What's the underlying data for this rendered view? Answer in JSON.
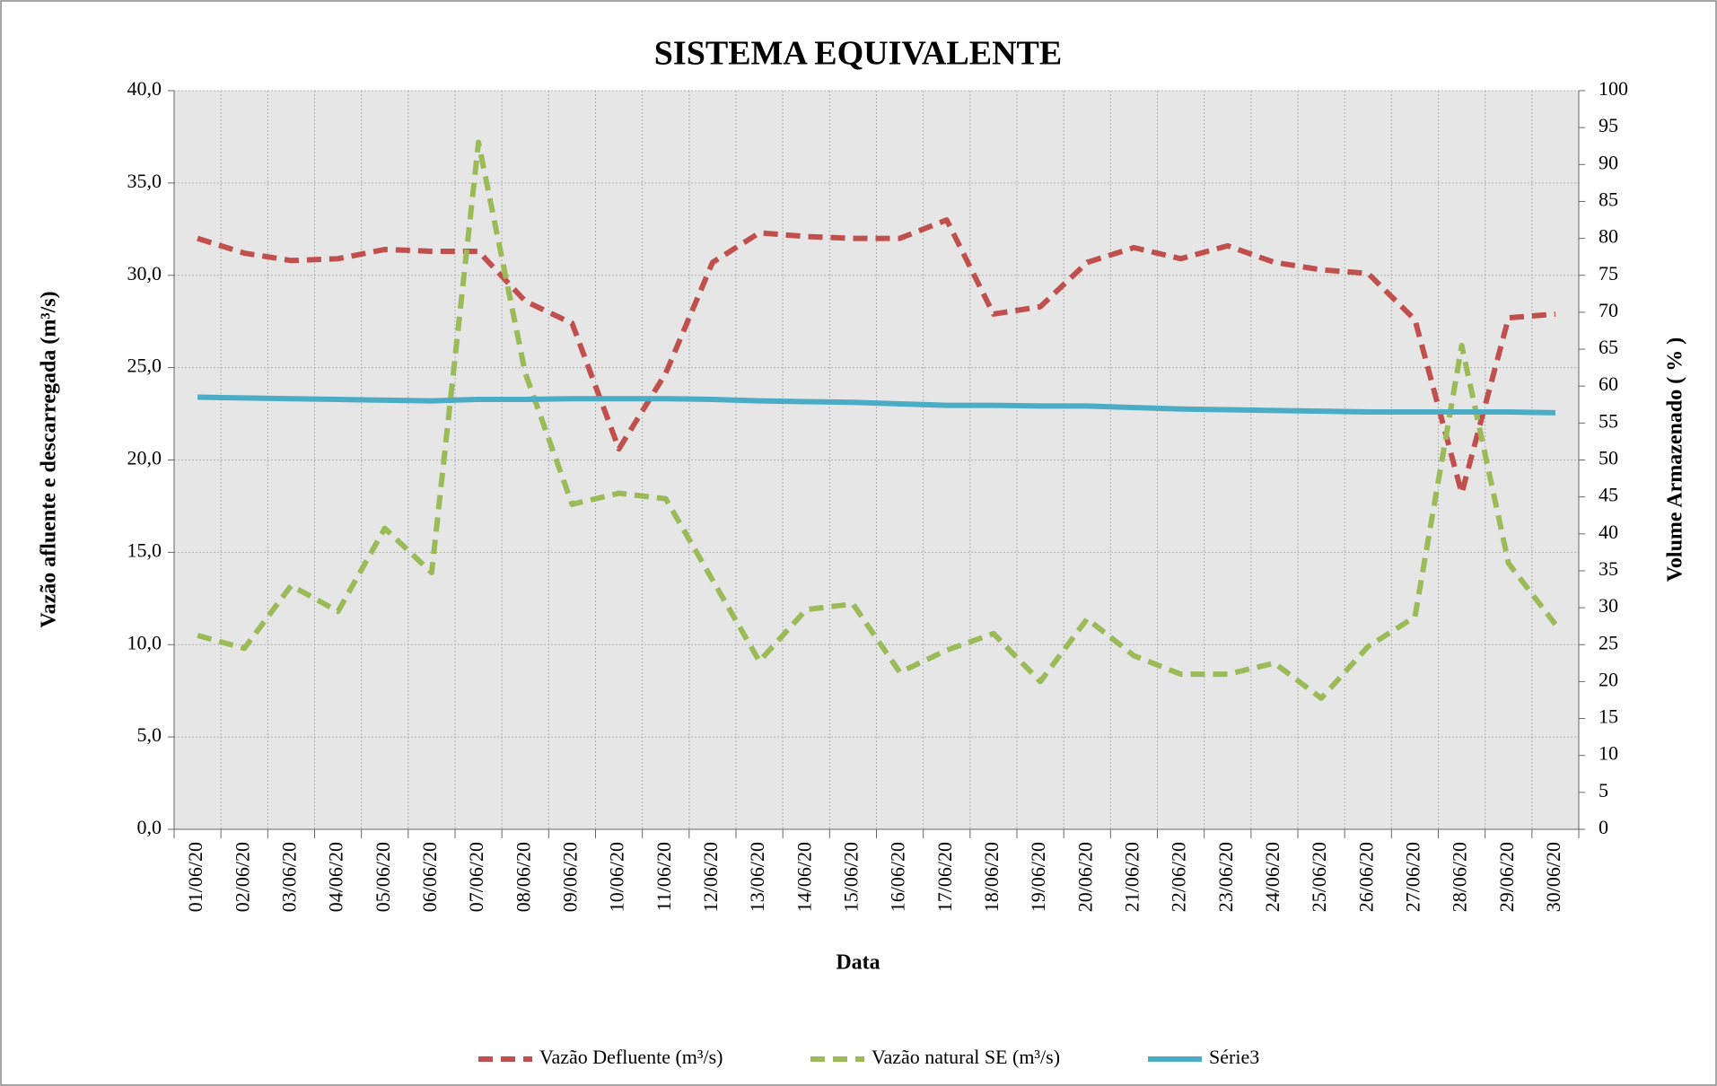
{
  "chart_data": {
    "type": "line",
    "title": "SISTEMA EQUIVALENTE",
    "x_label": "Data",
    "y_label": "Vazão afluente e descarregada (m³/s)",
    "y2_label": "Volume Armazenado ( % )",
    "categories": [
      "01/06/20",
      "02/06/20",
      "03/06/20",
      "04/06/20",
      "05/06/20",
      "06/06/20",
      "07/06/20",
      "08/06/20",
      "09/06/20",
      "10/06/20",
      "11/06/20",
      "12/06/20",
      "13/06/20",
      "14/06/20",
      "15/06/20",
      "16/06/20",
      "17/06/20",
      "18/06/20",
      "19/06/20",
      "20/06/20",
      "21/06/20",
      "22/06/20",
      "23/06/20",
      "24/06/20",
      "25/06/20",
      "26/06/20",
      "27/06/20",
      "28/06/20",
      "29/06/20",
      "30/06/20"
    ],
    "series": [
      {
        "name": "Vazão Defluente (m³/s)",
        "color": "#c0504d",
        "dashed": true,
        "axis": "y",
        "values": [
          32.0,
          31.2,
          30.8,
          30.9,
          31.4,
          31.3,
          31.3,
          28.6,
          27.4,
          20.6,
          24.7,
          30.7,
          32.3,
          32.1,
          32.0,
          32.0,
          33.0,
          27.9,
          28.3,
          30.7,
          31.5,
          30.9,
          31.6,
          30.7,
          30.3,
          30.1,
          27.6,
          18.2,
          27.7,
          27.9
        ]
      },
      {
        "name": "Vazão natural SE (m³/s)",
        "color": "#9bbb59",
        "dashed": true,
        "axis": "y",
        "values": [
          10.5,
          9.8,
          13.2,
          11.8,
          16.3,
          13.9,
          37.2,
          24.7,
          17.6,
          18.2,
          17.9,
          13.5,
          9.1,
          11.9,
          12.2,
          8.5,
          9.7,
          10.6,
          8.0,
          11.4,
          9.4,
          8.4,
          8.4,
          9.0,
          7.1,
          9.9,
          11.5,
          26.2,
          14.4,
          11.1
        ]
      },
      {
        "name": "Série3",
        "color": "#4bacc6",
        "dashed": false,
        "axis": "y2",
        "values": [
          58.5,
          58.4,
          58.3,
          58.2,
          58.1,
          58.0,
          58.2,
          58.2,
          58.3,
          58.3,
          58.3,
          58.2,
          58.0,
          57.9,
          57.8,
          57.6,
          57.4,
          57.4,
          57.3,
          57.3,
          57.1,
          56.9,
          56.8,
          56.7,
          56.6,
          56.5,
          56.5,
          56.5,
          56.5,
          56.4
        ]
      }
    ],
    "ylim": [
      0,
      40
    ],
    "yticks": [
      {
        "value": 0,
        "label": "0,0"
      },
      {
        "value": 5,
        "label": "5,0"
      },
      {
        "value": 10,
        "label": "10,0"
      },
      {
        "value": 15,
        "label": "15,0"
      },
      {
        "value": 20,
        "label": "20,0"
      },
      {
        "value": 25,
        "label": "25,0"
      },
      {
        "value": 30,
        "label": "30,0"
      },
      {
        "value": 35,
        "label": "35,0"
      },
      {
        "value": 40,
        "label": "40,0"
      }
    ],
    "y2lim": [
      0,
      100
    ],
    "y2ticks": [
      0,
      5,
      10,
      15,
      20,
      25,
      30,
      35,
      40,
      45,
      50,
      55,
      60,
      65,
      70,
      75,
      80,
      85,
      90,
      95,
      100
    ],
    "grid": true
  }
}
